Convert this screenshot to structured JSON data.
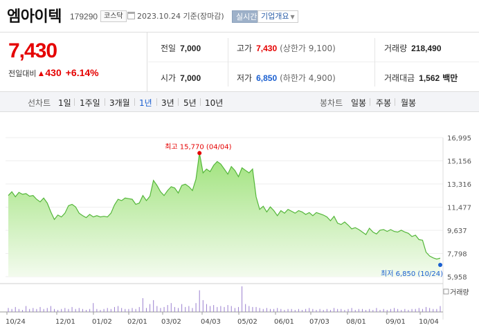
{
  "stock": {
    "name": "엠아이텍",
    "code": "179290",
    "market": "코스닥",
    "date_text": "2023.10.24 기준(장마감)",
    "realtime_label": "실시간",
    "company_info_label": "기업개요"
  },
  "price": {
    "now": "7,430",
    "change_label": "전일대비",
    "change_symbol": "▲",
    "change": "430",
    "change_pct": "+6.14%"
  },
  "stats": {
    "prev_label": "전일",
    "prev_value": "7,000",
    "high_label": "고가",
    "high_value": "7,430",
    "high_sub": "(상한가 9,100)",
    "volume_label": "거래량",
    "volume_value": "218,490",
    "open_label": "시가",
    "open_value": "7,000",
    "low_label": "저가",
    "low_value": "6,850",
    "low_sub": "(하한가 4,900)",
    "amount_label": "거래대금",
    "amount_value": "1,562",
    "amount_unit": "백만"
  },
  "tabs": {
    "line_label": "선차트",
    "line_periods": [
      "1일",
      "1주일",
      "3개월",
      "1년",
      "3년",
      "5년",
      "10년"
    ],
    "active_period": "1년",
    "candle_label": "봉차트",
    "candle_periods": [
      "일봉",
      "주봉",
      "월봉"
    ]
  },
  "chart_data": {
    "type": "area",
    "series_color": "#54b63a",
    "fill_top_color": "#9ee27a",
    "y_ticks": [
      "16,995",
      "15,156",
      "13,316",
      "11,477",
      "9,637",
      "7,798",
      "5,958"
    ],
    "ylim": [
      5958,
      16995
    ],
    "x_ticks": [
      "10/24",
      "12/01",
      "01/02",
      "02/01",
      "03/02",
      "04/03",
      "05/02",
      "06/01",
      "07/03",
      "08/01",
      "09/01",
      "10/04"
    ],
    "max_label": "최고 15,770 (04/04)",
    "min_label": "최저 6,850 (10/24)",
    "volume_label": "거래량",
    "values": [
      12400,
      12700,
      12300,
      12650,
      12500,
      12550,
      12350,
      12400,
      12100,
      11900,
      12200,
      11800,
      11100,
      10500,
      10850,
      10700,
      11000,
      11600,
      11700,
      11500,
      11000,
      10800,
      10650,
      10900,
      10700,
      10800,
      10700,
      10750,
      10700,
      11000,
      11650,
      12100,
      12000,
      12200,
      12150,
      12100,
      11700,
      11800,
      12400,
      12000,
      12350,
      13600,
      13200,
      12700,
      12400,
      12800,
      13100,
      13000,
      12600,
      13200,
      13300,
      13100,
      12800,
      13700,
      15770,
      14200,
      14500,
      14300,
      14800,
      15100,
      14900,
      14500,
      14100,
      14700,
      14400,
      13900,
      14600,
      14400,
      14200,
      14500,
      12300,
      11300,
      11550,
      11100,
      11500,
      11200,
      10800,
      11200,
      11000,
      11300,
      11150,
      11000,
      11200,
      11100,
      10900,
      11050,
      10800,
      11050,
      10950,
      10850,
      10700,
      10400,
      10750,
      10200,
      10100,
      10300,
      10050,
      9750,
      9850,
      9700,
      9500,
      9300,
      9800,
      9500,
      9350,
      9650,
      9700,
      9550,
      9700,
      9550,
      9500,
      9650,
      9500,
      9400,
      9150,
      9250,
      8900,
      8850,
      7900,
      7600,
      7450,
      7350,
      7430
    ],
    "volume": [
      4,
      3,
      5,
      3,
      2,
      6,
      3,
      4,
      3,
      5,
      3,
      4,
      6,
      3,
      2,
      3,
      4,
      3,
      5,
      3,
      4,
      3,
      2,
      3,
      9,
      3,
      2,
      3,
      4,
      3,
      5,
      6,
      4,
      3,
      3,
      4,
      3,
      5,
      14,
      4,
      8,
      12,
      6,
      4,
      5,
      7,
      9,
      5,
      4,
      8,
      5,
      6,
      4,
      9,
      22,
      12,
      8,
      6,
      7,
      5,
      6,
      5,
      7,
      6,
      4,
      5,
      26,
      8,
      6,
      5,
      5,
      4,
      3,
      4,
      3,
      3,
      4,
      3,
      2,
      3,
      3,
      2,
      3,
      2,
      3,
      4,
      3,
      2,
      3,
      2,
      3,
      2,
      4,
      3,
      3,
      2,
      3,
      4,
      2,
      3,
      3,
      2,
      3,
      2,
      4,
      2,
      3,
      2,
      3,
      4,
      3,
      2,
      3,
      2,
      3,
      3,
      4,
      3,
      5,
      4,
      3,
      3,
      6
    ]
  }
}
